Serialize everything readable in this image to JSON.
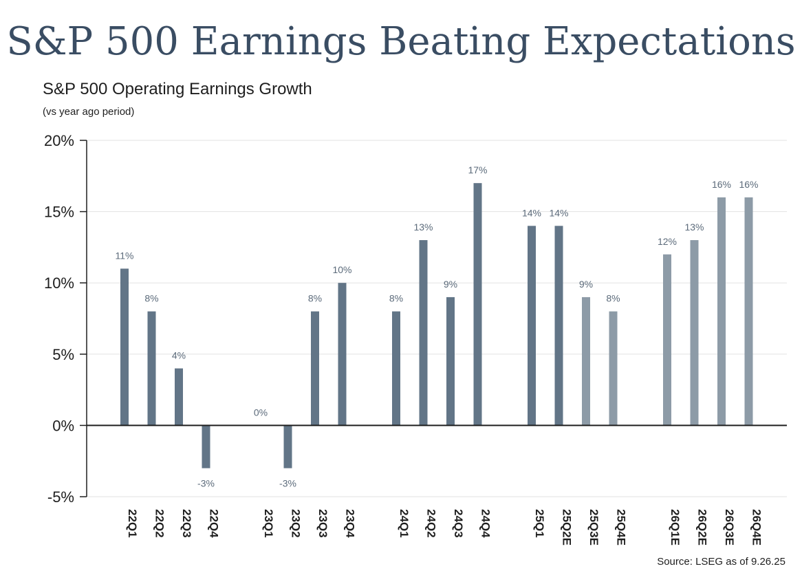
{
  "page": {
    "title": "S&P 500 Earnings Beating Expectations",
    "source": "Source: LSEG as of 9.26.25"
  },
  "colors": {
    "title": "#3a4d63",
    "actual_bar": "#627587",
    "estimate_bar": "#8d9ba7",
    "label": "#5b6a7a"
  },
  "chart_data": {
    "type": "bar",
    "title": "S&P 500 Operating Earnings Growth",
    "subtitle": "(vs year ago period)",
    "xlabel": "",
    "ylabel": "",
    "ylim": [
      -5,
      20
    ],
    "yticks": [
      20,
      15,
      10,
      5,
      0,
      -5
    ],
    "ytick_labels": [
      "20%",
      "15%",
      "10%",
      "5%",
      "0%",
      "-5%"
    ],
    "grid": "horizontal",
    "groups": [
      {
        "bars": [
          {
            "category": "22Q1",
            "value": 11,
            "label": "11%",
            "estimate": false
          },
          {
            "category": "22Q2",
            "value": 8,
            "label": "8%",
            "estimate": false
          },
          {
            "category": "22Q3",
            "value": 4,
            "label": "4%",
            "estimate": false
          },
          {
            "category": "22Q4",
            "value": -3,
            "label": "-3%",
            "estimate": false
          }
        ]
      },
      {
        "bars": [
          {
            "category": "23Q1",
            "value": 0,
            "label": "0%",
            "estimate": false
          },
          {
            "category": "23Q2",
            "value": -3,
            "label": "-3%",
            "estimate": false
          },
          {
            "category": "23Q3",
            "value": 8,
            "label": "8%",
            "estimate": false
          },
          {
            "category": "23Q4",
            "value": 10,
            "label": "10%",
            "estimate": false
          }
        ]
      },
      {
        "bars": [
          {
            "category": "24Q1",
            "value": 8,
            "label": "8%",
            "estimate": false
          },
          {
            "category": "24Q2",
            "value": 13,
            "label": "13%",
            "estimate": false
          },
          {
            "category": "24Q3",
            "value": 9,
            "label": "9%",
            "estimate": false
          },
          {
            "category": "24Q4",
            "value": 17,
            "label": "17%",
            "estimate": false
          }
        ]
      },
      {
        "bars": [
          {
            "category": "25Q1",
            "value": 14,
            "label": "14%",
            "estimate": false
          },
          {
            "category": "25Q2E",
            "value": 14,
            "label": "14%",
            "estimate": false
          },
          {
            "category": "25Q3E",
            "value": 9,
            "label": "9%",
            "estimate": true
          },
          {
            "category": "25Q4E",
            "value": 8,
            "label": "8%",
            "estimate": true
          }
        ]
      },
      {
        "bars": [
          {
            "category": "26Q1E",
            "value": 12,
            "label": "12%",
            "estimate": true
          },
          {
            "category": "26Q2E",
            "value": 13,
            "label": "13%",
            "estimate": true
          },
          {
            "category": "26Q3E",
            "value": 16,
            "label": "16%",
            "estimate": true
          },
          {
            "category": "26Q4E",
            "value": 16,
            "label": "16%",
            "estimate": true
          }
        ]
      }
    ]
  }
}
